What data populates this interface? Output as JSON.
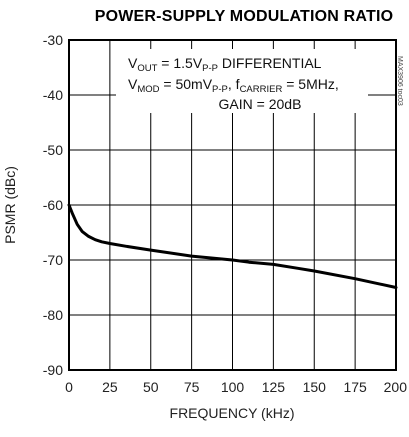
{
  "chart_data": {
    "type": "line",
    "title": "POWER-SUPPLY MODULATION RATIO",
    "xlabel": "FREQUENCY (kHz)",
    "ylabel": "PSMR (dBc)",
    "xlim": [
      0,
      200
    ],
    "ylim": [
      -90,
      -30
    ],
    "grid": true,
    "x_ticks": [
      "0",
      "25",
      "50",
      "75",
      "100",
      "125",
      "150",
      "175",
      "200"
    ],
    "y_ticks": [
      "-30",
      "-40",
      "-50",
      "-60",
      "-70",
      "-80",
      "-90"
    ],
    "annotations": {
      "line1": {
        "a": "V",
        "a_sub": "OUT",
        "b": " = 1.5V",
        "b_sub": "P-P",
        "c": " DIFFERENTIAL"
      },
      "line2": {
        "a": "V",
        "a_sub": "MOD",
        "b": " = 50mV",
        "b_sub": "P-P",
        "c": ", f",
        "c_sub": "CARRIER",
        "d": " = 5MHz,"
      },
      "line3": "GAIN = 20dB"
    },
    "watermark": "MAX3906 toc03",
    "series": [
      {
        "x": [
          0,
          2,
          5,
          8,
          12,
          16,
          20,
          25,
          35,
          50,
          75,
          100,
          110,
          125,
          140,
          150,
          175,
          200
        ],
        "y": [
          -60,
          -61.5,
          -63.5,
          -64.8,
          -65.7,
          -66.3,
          -66.7,
          -67.0,
          -67.5,
          -68.2,
          -69.3,
          -70.0,
          -70.4,
          -70.8,
          -71.5,
          -72.0,
          -73.4,
          -75.0
        ]
      }
    ]
  }
}
